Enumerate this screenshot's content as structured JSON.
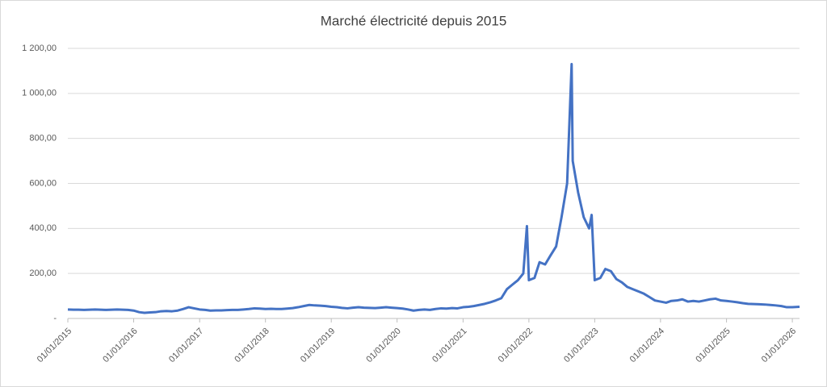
{
  "chart_data": {
    "type": "line",
    "title": "Marché électricité depuis 2015",
    "x": [
      "01/01/2015",
      "01/02/2015",
      "01/03/2015",
      "01/04/2015",
      "01/05/2015",
      "01/06/2015",
      "01/07/2015",
      "01/08/2015",
      "01/09/2015",
      "01/10/2015",
      "01/11/2015",
      "01/12/2015",
      "01/01/2016",
      "01/02/2016",
      "01/03/2016",
      "01/04/2016",
      "01/05/2016",
      "01/06/2016",
      "01/07/2016",
      "01/08/2016",
      "01/09/2016",
      "01/10/2016",
      "01/11/2016",
      "01/12/2016",
      "01/01/2017",
      "01/02/2017",
      "01/03/2017",
      "01/04/2017",
      "01/05/2017",
      "01/06/2017",
      "01/07/2017",
      "01/08/2017",
      "01/09/2017",
      "01/10/2017",
      "01/11/2017",
      "01/12/2017",
      "01/01/2018",
      "01/02/2018",
      "01/03/2018",
      "01/04/2018",
      "01/05/2018",
      "01/06/2018",
      "01/07/2018",
      "01/08/2018",
      "01/09/2018",
      "01/10/2018",
      "01/11/2018",
      "01/12/2018",
      "01/01/2019",
      "01/02/2019",
      "01/03/2019",
      "01/04/2019",
      "01/05/2019",
      "01/06/2019",
      "01/07/2019",
      "01/08/2019",
      "01/09/2019",
      "01/10/2019",
      "01/11/2019",
      "01/12/2019",
      "01/01/2020",
      "01/02/2020",
      "01/03/2020",
      "01/04/2020",
      "01/05/2020",
      "01/06/2020",
      "01/07/2020",
      "01/08/2020",
      "01/09/2020",
      "01/10/2020",
      "01/11/2020",
      "01/12/2020",
      "01/01/2021",
      "01/02/2021",
      "01/03/2021",
      "01/04/2021",
      "01/05/2021",
      "01/06/2021",
      "01/07/2021",
      "01/08/2021",
      "01/09/2021",
      "01/10/2021",
      "01/11/2021",
      "01/12/2021",
      "21/12/2021",
      "01/01/2022",
      "01/02/2022",
      "01/03/2022",
      "01/04/2022",
      "01/05/2022",
      "01/06/2022",
      "01/07/2022",
      "01/08/2022",
      "26/08/2022",
      "01/09/2022",
      "01/10/2022",
      "01/11/2022",
      "01/12/2022",
      "15/12/2022",
      "01/01/2023",
      "01/02/2023",
      "01/03/2023",
      "01/04/2023",
      "01/05/2023",
      "01/06/2023",
      "01/07/2023",
      "01/08/2023",
      "01/09/2023",
      "01/10/2023",
      "01/11/2023",
      "01/12/2023",
      "01/01/2024",
      "01/02/2024",
      "01/03/2024",
      "01/04/2024",
      "01/05/2024",
      "01/06/2024",
      "01/07/2024",
      "01/08/2024",
      "01/09/2024",
      "01/10/2024",
      "01/11/2024",
      "01/12/2024",
      "01/01/2025",
      "01/02/2025",
      "01/03/2025",
      "01/04/2025",
      "01/05/2025",
      "01/06/2025",
      "01/07/2025",
      "01/08/2025",
      "01/09/2025",
      "01/10/2025",
      "01/11/2025",
      "01/12/2025",
      "01/01/2026",
      "10/02/2026"
    ],
    "values": [
      40,
      39,
      39,
      38,
      39,
      40,
      39,
      38,
      39,
      40,
      39,
      38,
      35,
      28,
      25,
      27,
      28,
      32,
      33,
      32,
      35,
      42,
      50,
      45,
      40,
      38,
      35,
      36,
      36,
      37,
      38,
      38,
      40,
      42,
      45,
      44,
      42,
      43,
      42,
      42,
      44,
      46,
      50,
      55,
      60,
      58,
      57,
      55,
      52,
      50,
      47,
      45,
      48,
      50,
      48,
      47,
      46,
      48,
      50,
      48,
      46,
      44,
      40,
      35,
      38,
      40,
      38,
      42,
      45,
      44,
      46,
      45,
      50,
      52,
      55,
      60,
      65,
      72,
      80,
      90,
      130,
      150,
      170,
      200,
      410,
      170,
      180,
      250,
      240,
      280,
      320,
      450,
      600,
      1130,
      700,
      560,
      450,
      400,
      460,
      170,
      180,
      220,
      210,
      175,
      160,
      140,
      130,
      120,
      110,
      95,
      80,
      75,
      70,
      78,
      80,
      85,
      75,
      78,
      75,
      80,
      85,
      88,
      80,
      78,
      75,
      72,
      68,
      65,
      64,
      63,
      62,
      60,
      58,
      55,
      50,
      50,
      52
    ],
    "color": "#4472c4",
    "xlim": [
      "01/01/2015",
      "10/02/2026"
    ],
    "xticks": [
      "01/01/2015",
      "01/01/2016",
      "01/01/2017",
      "01/01/2018",
      "01/01/2019",
      "01/01/2020",
      "01/01/2021",
      "01/01/2022",
      "01/01/2023",
      "01/01/2024",
      "01/01/2025",
      "01/01/2026"
    ],
    "ylim": [
      0,
      1200
    ],
    "yticks": [
      {
        "value": 0,
        "label": "-"
      },
      {
        "value": 200,
        "label": "200,00"
      },
      {
        "value": 400,
        "label": "400,00"
      },
      {
        "value": 600,
        "label": "600,00"
      },
      {
        "value": 800,
        "label": "800,00"
      },
      {
        "value": 1000,
        "label": "1 000,00"
      },
      {
        "value": 1200,
        "label": "1 200,00"
      }
    ],
    "grid": true
  }
}
